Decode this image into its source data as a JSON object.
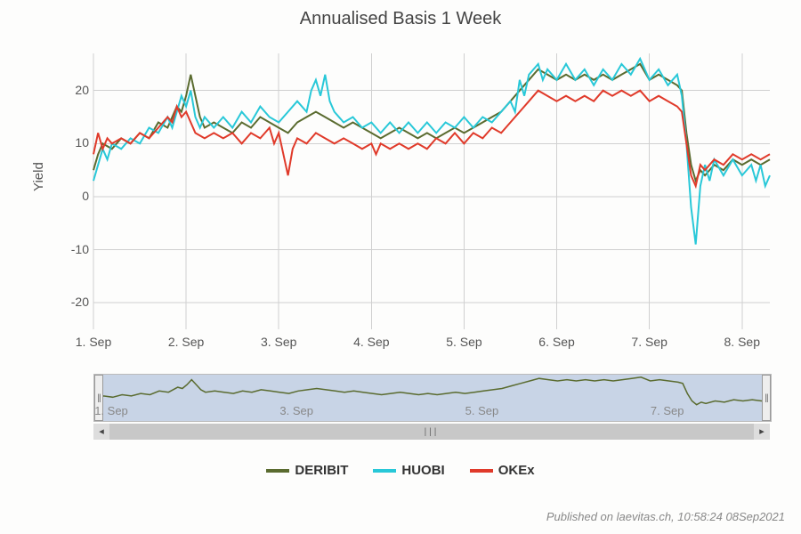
{
  "title": "Annualised Basis 1 Week",
  "ylabel": "Yield",
  "footer": "Published on laevitas.ch, 10:58:24 08Sep2021",
  "background_color": "#fdfdfc",
  "grid_color": "#d0d0d0",
  "title_fontsize": 20,
  "label_fontsize": 15,
  "tick_fontsize": 14,
  "line_width": 2,
  "x_domain": [
    1.0,
    8.3
  ],
  "y_domain": [
    -25,
    27
  ],
  "y_ticks": [
    -20,
    -10,
    0,
    10,
    20
  ],
  "x_ticks": [
    {
      "v": 1,
      "label": "1. Sep"
    },
    {
      "v": 2,
      "label": "2. Sep"
    },
    {
      "v": 3,
      "label": "3. Sep"
    },
    {
      "v": 4,
      "label": "4. Sep"
    },
    {
      "v": 5,
      "label": "5. Sep"
    },
    {
      "v": 6,
      "label": "6. Sep"
    },
    {
      "v": 7,
      "label": "7. Sep"
    },
    {
      "v": 8,
      "label": "8. Sep"
    }
  ],
  "nav_ticks": [
    {
      "v": 1,
      "label": "1. Sep"
    },
    {
      "v": 3,
      "label": "3. Sep"
    },
    {
      "v": 5,
      "label": "5. Sep"
    },
    {
      "v": 7,
      "label": "7. Sep"
    }
  ],
  "series": [
    {
      "name": "DERIBIT",
      "color": "#5a6b2f",
      "data": [
        [
          1.0,
          5
        ],
        [
          1.05,
          8
        ],
        [
          1.1,
          10
        ],
        [
          1.2,
          9
        ],
        [
          1.3,
          11
        ],
        [
          1.4,
          10
        ],
        [
          1.5,
          12
        ],
        [
          1.6,
          11
        ],
        [
          1.7,
          14
        ],
        [
          1.8,
          13
        ],
        [
          1.9,
          17
        ],
        [
          1.95,
          16
        ],
        [
          2.0,
          19
        ],
        [
          2.05,
          23
        ],
        [
          2.1,
          19
        ],
        [
          2.15,
          15
        ],
        [
          2.2,
          13
        ],
        [
          2.3,
          14
        ],
        [
          2.4,
          13
        ],
        [
          2.5,
          12
        ],
        [
          2.6,
          14
        ],
        [
          2.7,
          13
        ],
        [
          2.8,
          15
        ],
        [
          2.9,
          14
        ],
        [
          3.0,
          13
        ],
        [
          3.1,
          12
        ],
        [
          3.2,
          14
        ],
        [
          3.3,
          15
        ],
        [
          3.4,
          16
        ],
        [
          3.5,
          15
        ],
        [
          3.6,
          14
        ],
        [
          3.7,
          13
        ],
        [
          3.8,
          14
        ],
        [
          3.9,
          13
        ],
        [
          4.0,
          12
        ],
        [
          4.1,
          11
        ],
        [
          4.2,
          12
        ],
        [
          4.3,
          13
        ],
        [
          4.4,
          12
        ],
        [
          4.5,
          11
        ],
        [
          4.6,
          12
        ],
        [
          4.7,
          11
        ],
        [
          4.8,
          12
        ],
        [
          4.9,
          13
        ],
        [
          5.0,
          12
        ],
        [
          5.1,
          13
        ],
        [
          5.2,
          14
        ],
        [
          5.3,
          15
        ],
        [
          5.4,
          16
        ],
        [
          5.5,
          18
        ],
        [
          5.6,
          20
        ],
        [
          5.7,
          22
        ],
        [
          5.8,
          24
        ],
        [
          5.9,
          23
        ],
        [
          6.0,
          22
        ],
        [
          6.1,
          23
        ],
        [
          6.2,
          22
        ],
        [
          6.3,
          23
        ],
        [
          6.4,
          22
        ],
        [
          6.5,
          23
        ],
        [
          6.6,
          22
        ],
        [
          6.7,
          23
        ],
        [
          6.8,
          24
        ],
        [
          6.9,
          25
        ],
        [
          7.0,
          22
        ],
        [
          7.1,
          23
        ],
        [
          7.2,
          22
        ],
        [
          7.3,
          21
        ],
        [
          7.35,
          20
        ],
        [
          7.4,
          12
        ],
        [
          7.45,
          6
        ],
        [
          7.5,
          3
        ],
        [
          7.55,
          5
        ],
        [
          7.6,
          4
        ],
        [
          7.7,
          6
        ],
        [
          7.8,
          5
        ],
        [
          7.9,
          7
        ],
        [
          8.0,
          6
        ],
        [
          8.1,
          7
        ],
        [
          8.2,
          6
        ],
        [
          8.3,
          7
        ]
      ]
    },
    {
      "name": "HUOBI",
      "color": "#28c8d8",
      "data": [
        [
          1.0,
          3
        ],
        [
          1.05,
          6
        ],
        [
          1.1,
          9
        ],
        [
          1.15,
          7
        ],
        [
          1.2,
          10
        ],
        [
          1.3,
          9
        ],
        [
          1.4,
          11
        ],
        [
          1.5,
          10
        ],
        [
          1.6,
          13
        ],
        [
          1.7,
          12
        ],
        [
          1.8,
          15
        ],
        [
          1.85,
          13
        ],
        [
          1.9,
          16
        ],
        [
          1.95,
          19
        ],
        [
          2.0,
          17
        ],
        [
          2.05,
          20
        ],
        [
          2.1,
          15
        ],
        [
          2.15,
          13
        ],
        [
          2.2,
          15
        ],
        [
          2.3,
          13
        ],
        [
          2.4,
          15
        ],
        [
          2.5,
          13
        ],
        [
          2.6,
          16
        ],
        [
          2.7,
          14
        ],
        [
          2.8,
          17
        ],
        [
          2.9,
          15
        ],
        [
          3.0,
          14
        ],
        [
          3.1,
          16
        ],
        [
          3.2,
          18
        ],
        [
          3.3,
          16
        ],
        [
          3.35,
          20
        ],
        [
          3.4,
          22
        ],
        [
          3.45,
          19
        ],
        [
          3.5,
          23
        ],
        [
          3.55,
          18
        ],
        [
          3.6,
          16
        ],
        [
          3.7,
          14
        ],
        [
          3.8,
          15
        ],
        [
          3.9,
          13
        ],
        [
          4.0,
          14
        ],
        [
          4.1,
          12
        ],
        [
          4.2,
          14
        ],
        [
          4.3,
          12
        ],
        [
          4.4,
          14
        ],
        [
          4.5,
          12
        ],
        [
          4.6,
          14
        ],
        [
          4.7,
          12
        ],
        [
          4.8,
          14
        ],
        [
          4.9,
          13
        ],
        [
          5.0,
          15
        ],
        [
          5.1,
          13
        ],
        [
          5.2,
          15
        ],
        [
          5.3,
          14
        ],
        [
          5.4,
          16
        ],
        [
          5.5,
          18
        ],
        [
          5.55,
          16
        ],
        [
          5.6,
          22
        ],
        [
          5.65,
          19
        ],
        [
          5.7,
          23
        ],
        [
          5.8,
          25
        ],
        [
          5.85,
          22
        ],
        [
          5.9,
          24
        ],
        [
          6.0,
          22
        ],
        [
          6.1,
          25
        ],
        [
          6.2,
          22
        ],
        [
          6.3,
          24
        ],
        [
          6.4,
          21
        ],
        [
          6.5,
          24
        ],
        [
          6.6,
          22
        ],
        [
          6.7,
          25
        ],
        [
          6.8,
          23
        ],
        [
          6.9,
          26
        ],
        [
          7.0,
          22
        ],
        [
          7.1,
          24
        ],
        [
          7.2,
          21
        ],
        [
          7.3,
          23
        ],
        [
          7.35,
          19
        ],
        [
          7.4,
          10
        ],
        [
          7.45,
          -2
        ],
        [
          7.5,
          -9
        ],
        [
          7.55,
          2
        ],
        [
          7.6,
          6
        ],
        [
          7.65,
          3
        ],
        [
          7.7,
          7
        ],
        [
          7.8,
          4
        ],
        [
          7.9,
          7
        ],
        [
          8.0,
          4
        ],
        [
          8.1,
          6
        ],
        [
          8.15,
          3
        ],
        [
          8.2,
          6
        ],
        [
          8.25,
          2
        ],
        [
          8.3,
          4
        ]
      ]
    },
    {
      "name": "OKEx",
      "color": "#e03a2a",
      "data": [
        [
          1.0,
          8
        ],
        [
          1.05,
          12
        ],
        [
          1.1,
          9
        ],
        [
          1.15,
          11
        ],
        [
          1.2,
          10
        ],
        [
          1.3,
          11
        ],
        [
          1.4,
          10
        ],
        [
          1.5,
          12
        ],
        [
          1.6,
          11
        ],
        [
          1.7,
          13
        ],
        [
          1.8,
          15
        ],
        [
          1.85,
          14
        ],
        [
          1.9,
          17
        ],
        [
          1.95,
          15
        ],
        [
          2.0,
          16
        ],
        [
          2.05,
          14
        ],
        [
          2.1,
          12
        ],
        [
          2.2,
          11
        ],
        [
          2.3,
          12
        ],
        [
          2.4,
          11
        ],
        [
          2.5,
          12
        ],
        [
          2.6,
          10
        ],
        [
          2.7,
          12
        ],
        [
          2.8,
          11
        ],
        [
          2.9,
          13
        ],
        [
          2.95,
          10
        ],
        [
          3.0,
          12
        ],
        [
          3.05,
          8
        ],
        [
          3.1,
          4
        ],
        [
          3.15,
          9
        ],
        [
          3.2,
          11
        ],
        [
          3.3,
          10
        ],
        [
          3.4,
          12
        ],
        [
          3.5,
          11
        ],
        [
          3.6,
          10
        ],
        [
          3.7,
          11
        ],
        [
          3.8,
          10
        ],
        [
          3.9,
          9
        ],
        [
          4.0,
          10
        ],
        [
          4.05,
          8
        ],
        [
          4.1,
          10
        ],
        [
          4.2,
          9
        ],
        [
          4.3,
          10
        ],
        [
          4.4,
          9
        ],
        [
          4.5,
          10
        ],
        [
          4.6,
          9
        ],
        [
          4.7,
          11
        ],
        [
          4.8,
          10
        ],
        [
          4.9,
          12
        ],
        [
          5.0,
          10
        ],
        [
          5.1,
          12
        ],
        [
          5.2,
          11
        ],
        [
          5.3,
          13
        ],
        [
          5.4,
          12
        ],
        [
          5.5,
          14
        ],
        [
          5.6,
          16
        ],
        [
          5.7,
          18
        ],
        [
          5.8,
          20
        ],
        [
          5.9,
          19
        ],
        [
          6.0,
          18
        ],
        [
          6.1,
          19
        ],
        [
          6.2,
          18
        ],
        [
          6.3,
          19
        ],
        [
          6.4,
          18
        ],
        [
          6.5,
          20
        ],
        [
          6.6,
          19
        ],
        [
          6.7,
          20
        ],
        [
          6.8,
          19
        ],
        [
          6.9,
          20
        ],
        [
          7.0,
          18
        ],
        [
          7.1,
          19
        ],
        [
          7.2,
          18
        ],
        [
          7.3,
          17
        ],
        [
          7.35,
          16
        ],
        [
          7.4,
          10
        ],
        [
          7.45,
          4
        ],
        [
          7.5,
          2
        ],
        [
          7.55,
          6
        ],
        [
          7.6,
          5
        ],
        [
          7.7,
          7
        ],
        [
          7.8,
          6
        ],
        [
          7.9,
          8
        ],
        [
          8.0,
          7
        ],
        [
          8.1,
          8
        ],
        [
          8.2,
          7
        ],
        [
          8.3,
          8
        ]
      ]
    }
  ],
  "navigator": {
    "color": "#5a6b2f",
    "background": "#c8d4e6",
    "y_domain": [
      -10,
      27
    ]
  }
}
